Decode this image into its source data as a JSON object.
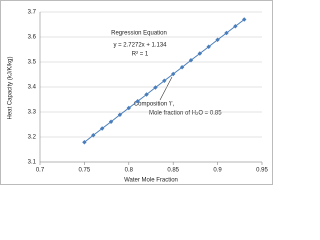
{
  "chart_data": {
    "type": "scatter",
    "x_label": "Water Mole Fraction",
    "y_label": "Heat Capacity (kJ/K/kg)",
    "annotations": [
      "Regression Equation",
      "y = 2.7272x + 1.134",
      "R² = 1",
      "Composition 'i',",
      "Mole fraction of H₂O = 0.85"
    ],
    "series": [
      {
        "color": "#4a7ebb",
        "x": [
          0.75,
          0.76,
          0.77,
          0.78,
          0.79,
          0.8,
          0.81,
          0.82,
          0.83,
          0.84,
          0.85,
          0.86,
          0.87,
          0.88,
          0.89,
          0.9,
          0.91,
          0.92,
          0.93
        ],
        "values": [
          3.179,
          3.207,
          3.234,
          3.261,
          3.289,
          3.316,
          3.343,
          3.37,
          3.398,
          3.425,
          3.452,
          3.479,
          3.507,
          3.534,
          3.561,
          3.589,
          3.616,
          3.643,
          3.67
        ]
      }
    ],
    "xlim": [
      0.7,
      0.95
    ],
    "xticks": [
      0.7,
      0.75,
      0.8,
      0.85,
      0.9,
      0.95
    ],
    "ylim": [
      3.1,
      3.7
    ],
    "yticks": [
      3.1,
      3.2,
      3.3,
      3.4,
      3.5,
      3.6,
      3.7
    ],
    "grid": true
  }
}
